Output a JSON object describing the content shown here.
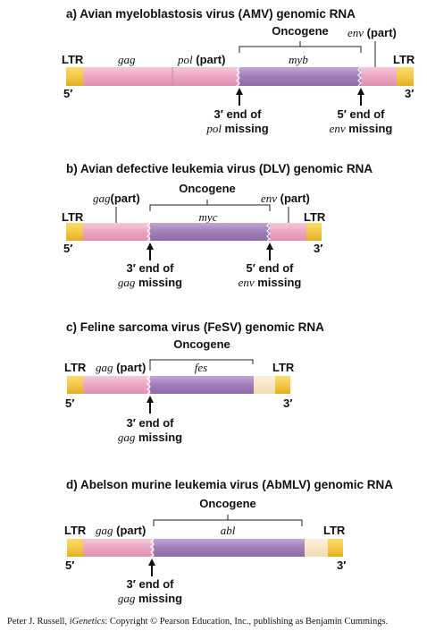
{
  "colors": {
    "ltr": "#F2C744",
    "ltr_edge": "#E3AE20",
    "pink": "#EBA6C3",
    "pink_hi": "#F5C9DA",
    "purple": "#A07EB9",
    "purple_hi": "#C2A6D6",
    "pale": "#F7E7C8"
  },
  "panels": [
    {
      "title": "a) Avian myeloblastosis virus (AMV) genomic RNA",
      "oncogene_label": "Oncogene",
      "ltr_left": "LTR",
      "ltr_right": "LTR",
      "end5": "5′",
      "end3": "3′",
      "gene_labels": [
        {
          "text": "gag",
          "italic": true
        },
        {
          "text_it": "pol",
          "text_plain": " (part)"
        },
        {
          "text": "myb",
          "italic": true
        },
        {
          "text_it": "env",
          "text_plain": " (part)"
        }
      ],
      "arrows": [
        {
          "line1": "3′ end of",
          "line2_it": "pol",
          "line2_plain": " missing"
        },
        {
          "line1": "5′ end of",
          "line2_it": "env",
          "line2_plain": " missing"
        }
      ]
    },
    {
      "title": "b) Avian defective leukemia virus (DLV) genomic RNA",
      "oncogene_label": "Oncogene",
      "ltr_left": "LTR",
      "ltr_right": "LTR",
      "end5": "5′",
      "end3": "3′",
      "gene_labels": [
        {
          "text_it": "gag",
          "text_plain": "(part)"
        },
        {
          "text": "myc",
          "italic": true
        },
        {
          "text_it": "env",
          "text_plain": " (part)"
        }
      ],
      "arrows": [
        {
          "line1": "3′ end of",
          "line2_it": "gag",
          "line2_plain": " missing"
        },
        {
          "line1": "5′ end of",
          "line2_it": "env",
          "line2_plain": " missing"
        }
      ]
    },
    {
      "title": "c) Feline sarcoma virus (FeSV) genomic RNA",
      "oncogene_label": "Oncogene",
      "ltr_left": "LTR",
      "ltr_right": "LTR",
      "end5": "5′",
      "end3": "3′",
      "gene_labels": [
        {
          "text_it": "gag",
          "text_plain": " (part)"
        },
        {
          "text": "fes",
          "italic": true
        }
      ],
      "arrows": [
        {
          "line1": "3′ end of",
          "line2_it": "gag",
          "line2_plain": " missing"
        }
      ]
    },
    {
      "title": "d) Abelson murine leukemia virus (AbMLV) genomic RNA",
      "oncogene_label": "Oncogene",
      "ltr_left": "LTR",
      "ltr_right": "LTR",
      "end5": "5′",
      "end3": "3′",
      "gene_labels": [
        {
          "text_it": "gag",
          "text_plain": " (part)"
        },
        {
          "text": "abl",
          "italic": true
        }
      ],
      "arrows": [
        {
          "line1": "3′ end of",
          "line2_it": "gag",
          "line2_plain": " missing"
        }
      ]
    }
  ],
  "credit": {
    "prefix": "Peter J. Russell, ",
    "book": "iGenetics",
    "suffix": ": Copyright © Pearson Education, Inc., publishing as Benjamin Cummings."
  }
}
